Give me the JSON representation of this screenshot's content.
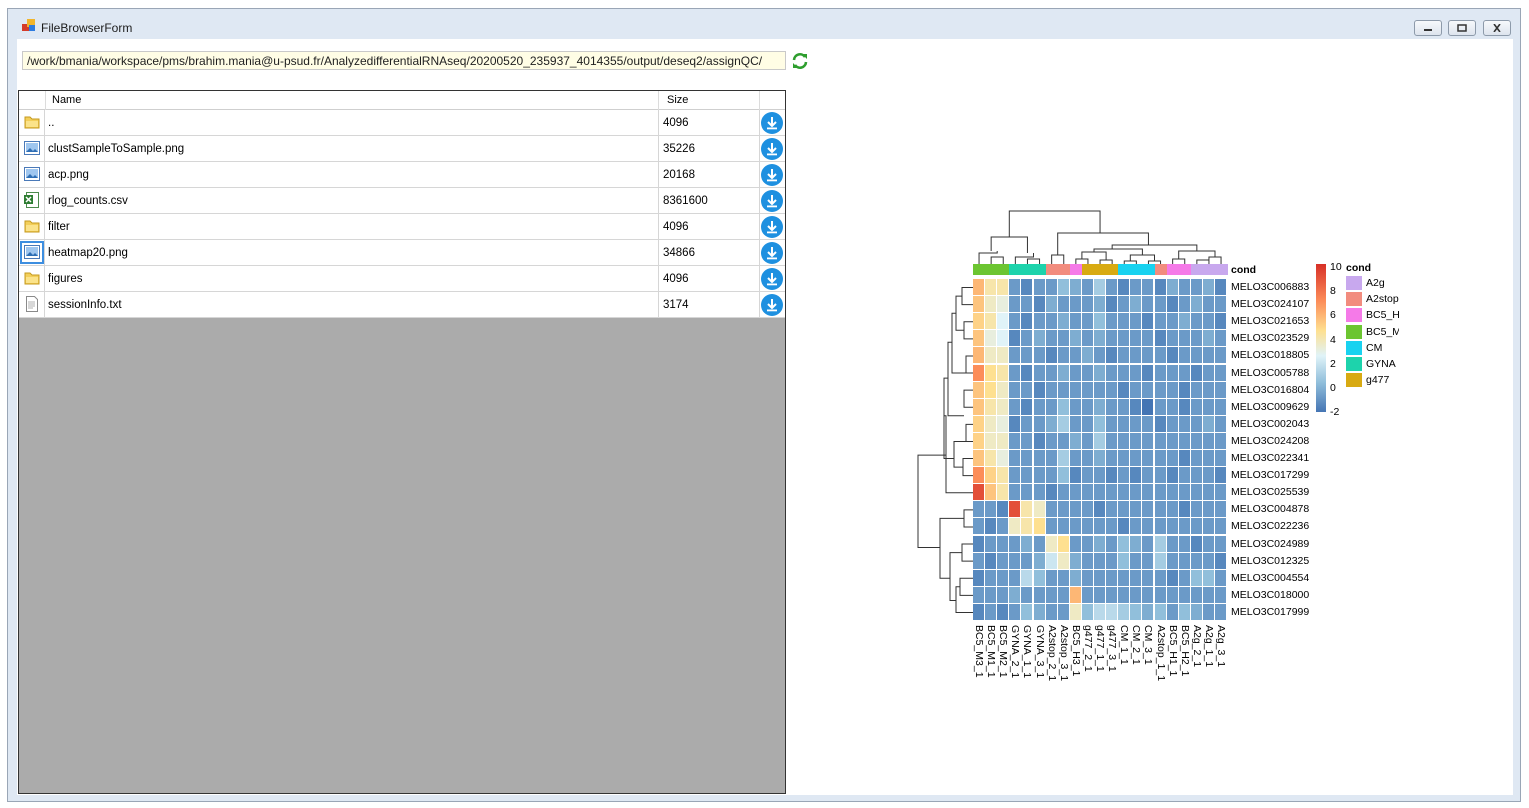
{
  "window": {
    "title": "FileBrowserForm"
  },
  "path": {
    "value": "/work/bmania/workspace/pms/brahim.mania@u-psud.fr/AnalyzedifferentialRNAseq/20200520_235937_4014355/output/deseq2/assignQC/"
  },
  "grid": {
    "columns": [
      "Name",
      "Size"
    ],
    "rows": [
      {
        "icon": "folder-icon",
        "name": "..",
        "size": "4096"
      },
      {
        "icon": "image-file-icon",
        "name": "clustSampleToSample.png",
        "size": "35226"
      },
      {
        "icon": "image-file-icon",
        "name": "acp.png",
        "size": "20168"
      },
      {
        "icon": "excel-file-icon",
        "name": "rlog_counts.csv",
        "size": "8361600"
      },
      {
        "icon": "folder-icon",
        "name": "filter",
        "size": "4096"
      },
      {
        "icon": "image-file-icon",
        "name": "heatmap20.png",
        "size": "34866"
      },
      {
        "icon": "folder-icon",
        "name": "figures",
        "size": "4096"
      },
      {
        "icon": "text-file-icon",
        "name": "sessionInfo.txt",
        "size": "3174"
      }
    ]
  },
  "heatmap": {
    "annotation_title": "cond",
    "legend_title": "cond",
    "scale_ticks": [
      "10",
      "8",
      "6",
      "4",
      "2",
      "0",
      "-2"
    ],
    "genes": [
      "MELO3C006883",
      "MELO3C024107",
      "MELO3C021653",
      "MELO3C023529",
      "MELO3C018805",
      "MELO3C005788",
      "MELO3C016804",
      "MELO3C009629",
      "MELO3C002043",
      "MELO3C024208",
      "MELO3C022341",
      "MELO3C017299",
      "MELO3C025539",
      "MELO3C004878",
      "MELO3C022236",
      "MELO3C024989",
      "MELO3C012325",
      "MELO3C004554",
      "MELO3C018000",
      "MELO3C017999"
    ],
    "samples": [
      "BC5_M3_1",
      "BC5_M1_1",
      "BC5_M2_1",
      "GYNA_2_1",
      "GYNA_1_1",
      "GYNA_3_1",
      "A2stop_2_1",
      "A2stop_3_1",
      "BC5_H3_1",
      "g477_2_1",
      "g477_1_1",
      "g477_3_1",
      "CM_1_1",
      "CM_2_1",
      "CM_3_1",
      "A2stop_1_1",
      "BC5_H1_1",
      "BC5_H2_1",
      "A2g_2_1",
      "A2g_1_1",
      "A2g_3_1"
    ],
    "sample_conditions": [
      "BC5_M",
      "BC5_M",
      "BC5_M",
      "GYNA",
      "GYNA",
      "GYNA",
      "A2stop",
      "A2stop",
      "BC5_H",
      "g477",
      "g477",
      "g477",
      "CM",
      "CM",
      "CM",
      "A2stop",
      "BC5_H",
      "BC5_H",
      "A2g",
      "A2g",
      "A2g"
    ],
    "legend": [
      {
        "label": "A2g",
        "color": "#c8a8ee"
      },
      {
        "label": "A2stop",
        "color": "#f28c7e"
      },
      {
        "label": "BC5_H",
        "color": "#f57ae8"
      },
      {
        "label": "BC5_M",
        "color": "#6cc531"
      },
      {
        "label": "CM",
        "color": "#18d2f0"
      },
      {
        "label": "GYNA",
        "color": "#1dd3ac"
      },
      {
        "label": "g477",
        "color": "#d8aa12"
      }
    ],
    "values": [
      [
        5.5,
        3.5,
        3.5,
        -1,
        -1.5,
        -1,
        -1,
        0,
        -0.5,
        -1,
        0.5,
        -1,
        -1.5,
        -1,
        -1,
        -1.5,
        -0.5,
        -1,
        -1,
        -0.5,
        -1.5
      ],
      [
        5,
        3,
        2.5,
        -1,
        -1,
        -1.5,
        -0.5,
        -1,
        -1,
        -1,
        -0.5,
        -1.5,
        -1,
        -0.5,
        -1,
        -1,
        -1.5,
        -1,
        -0.5,
        -1,
        -1
      ],
      [
        4.5,
        3.5,
        2,
        -1,
        -1.5,
        -1,
        -1,
        -0.5,
        -1,
        -1,
        0,
        -1,
        -1,
        -1,
        -1.5,
        -1,
        -1,
        -0.5,
        -1,
        -1,
        -1.5
      ],
      [
        5,
        2.5,
        2,
        -1.5,
        -1,
        -0.5,
        -1,
        -1,
        -0.5,
        -1,
        -0.5,
        -1,
        -1,
        -1,
        -1,
        -1.5,
        -1,
        -1,
        -1,
        -0.5,
        -1
      ],
      [
        5.5,
        3,
        3,
        -1,
        -1,
        -1,
        -1.5,
        -1,
        -1,
        -0.5,
        -1,
        -1.5,
        -1,
        -1,
        -1,
        -1,
        -1.5,
        -1,
        -1,
        -1,
        -1
      ],
      [
        7,
        4,
        3.5,
        -1,
        -1.5,
        -1,
        -1,
        -0.5,
        -1,
        -1,
        -0.5,
        -1,
        -1,
        -1,
        -1.5,
        -1,
        -1,
        -1,
        -1.5,
        -1,
        -1
      ],
      [
        5,
        4,
        3,
        -1,
        -1,
        -1.5,
        -1,
        -1,
        -1,
        -1,
        -1,
        -1,
        -1.5,
        -1,
        -1,
        -1,
        -1,
        -1.5,
        -1,
        -1,
        -1
      ],
      [
        5,
        3.5,
        3,
        -1,
        -1.5,
        -1,
        -1,
        0,
        -1,
        -1,
        -0.5,
        -1,
        -1,
        -1.5,
        -2,
        -1,
        -1,
        -1.5,
        -1,
        -1,
        -1
      ],
      [
        4.5,
        3,
        2.5,
        -1.5,
        -1,
        -1,
        -0.5,
        0.5,
        -1,
        -1,
        0,
        -1,
        -1,
        -1,
        -1,
        -1.5,
        -1,
        -1,
        -1,
        -0.5,
        -1
      ],
      [
        4.5,
        3,
        3,
        -1,
        -1,
        -1.5,
        -1,
        -1,
        -0.5,
        -1,
        0.5,
        -1,
        -1,
        -1,
        -1,
        -1,
        -1,
        -1,
        -1,
        -1,
        -1
      ],
      [
        5,
        3.5,
        2.5,
        -1,
        -1,
        -1,
        -1,
        0.5,
        -1,
        -1,
        -0.5,
        -1,
        -1,
        -1,
        -1,
        -1,
        -1,
        -1.5,
        -1,
        -1,
        -1
      ],
      [
        7,
        4.5,
        3.5,
        -1,
        -1,
        -1,
        -1,
        0,
        -1.5,
        -1,
        -1,
        -1.5,
        -1,
        -1.5,
        -1,
        -1,
        -1.5,
        -1,
        -1,
        -1,
        -1.5
      ],
      [
        9,
        5,
        3.5,
        -1,
        -1,
        -1,
        -1.5,
        -1,
        -1,
        -1,
        -1,
        -1,
        -1,
        -1,
        -1,
        -1,
        -1,
        -1,
        -1,
        -1,
        -1
      ],
      [
        -1,
        -1,
        -1.5,
        9,
        3.5,
        3,
        -1,
        -1,
        -1,
        -1,
        -1.5,
        -1,
        -1,
        -1,
        -1,
        -1,
        -1,
        -1.5,
        -1,
        -1,
        -1
      ],
      [
        -1,
        -1.5,
        -1,
        3,
        3.5,
        4,
        -1,
        -1,
        -1,
        -1,
        -1,
        -1,
        -1.5,
        -1,
        -1,
        -1,
        -1,
        -1,
        -1,
        -1,
        -1
      ],
      [
        -1.5,
        -1,
        -1,
        -1,
        -0.5,
        -1,
        3,
        4,
        -1,
        -1,
        -0.5,
        -1,
        0,
        -0.5,
        -1,
        0.5,
        -1,
        -1,
        -1.5,
        -1,
        -1
      ],
      [
        -1,
        -1.5,
        -1,
        -1,
        -1,
        -0.5,
        1.5,
        3,
        -0.5,
        -1,
        -1,
        -1,
        0,
        -1,
        -1,
        0.5,
        -1,
        -1,
        -1,
        -1,
        -1.5
      ],
      [
        -1.5,
        -1,
        -1,
        -1,
        1,
        0,
        -1,
        -1,
        -0.5,
        -1,
        -1,
        -1,
        -1,
        -1,
        -1,
        -1,
        -1.5,
        -1,
        0,
        0,
        -1
      ],
      [
        -1,
        -1,
        -1,
        -0.5,
        -1,
        -1,
        -1,
        -1,
        5.5,
        -1,
        -1,
        -1,
        -1,
        -1,
        -1,
        -1,
        -1,
        -1,
        -1,
        -1,
        -1
      ],
      [
        -1.5,
        -1,
        -1.5,
        -1,
        0,
        -0.5,
        -1,
        -1,
        3,
        0,
        1,
        1,
        0.5,
        0,
        -0.5,
        0,
        -1,
        0,
        -0.5,
        -1,
        -1
      ]
    ]
  }
}
